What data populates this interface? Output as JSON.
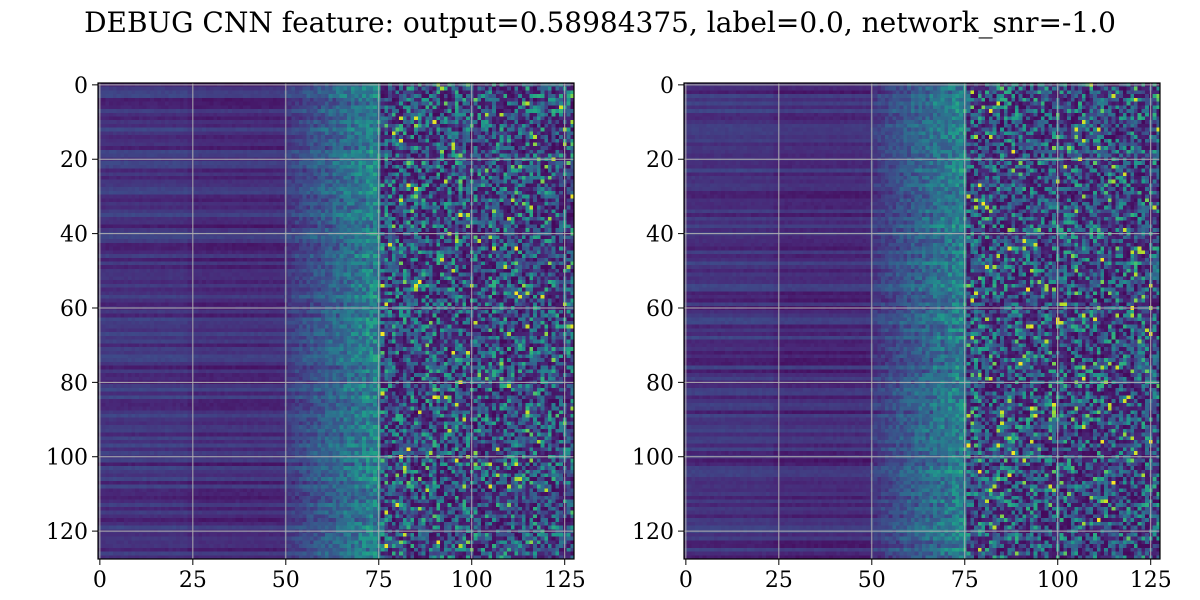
{
  "title": "DEBUG CNN feature: output=0.58984375, label=0.0, network_snr=-1.0",
  "colors": {
    "grid": "#b0b0b0",
    "axis": "#000000",
    "background": "#ffffff",
    "colormap": [
      "#440154",
      "#482878",
      "#3e4a89",
      "#31688e",
      "#26828e",
      "#1f9e89",
      "#35b779",
      "#6ece58",
      "#b5de2b",
      "#fde725"
    ]
  },
  "chart_data": [
    {
      "type": "heatmap",
      "colormap": "viridis",
      "grid": true,
      "shape": [
        128,
        128
      ],
      "xlim": [
        -0.5,
        127.5
      ],
      "ylim": [
        127.5,
        -0.5
      ],
      "y_inverted": true,
      "xticks": [
        0,
        25,
        50,
        75,
        100,
        125
      ],
      "yticks": [
        0,
        20,
        40,
        60,
        80,
        100,
        120
      ],
      "xtick_labels": [
        "0",
        "25",
        "50",
        "75",
        "100",
        "125"
      ],
      "ytick_labels": [
        "0",
        "20",
        "40",
        "60",
        "80",
        "100",
        "120"
      ],
      "pattern": "low, horizontally banded values in columns 0–50; values and noise increase from column ~50 to ~75; sparse noisy mix of low and high (up to max) values in columns 75–127",
      "value_range": [
        0,
        1
      ]
    },
    {
      "type": "heatmap",
      "colormap": "viridis",
      "grid": true,
      "shape": [
        128,
        128
      ],
      "xlim": [
        -0.5,
        127.5
      ],
      "ylim": [
        127.5,
        -0.5
      ],
      "y_inverted": true,
      "xticks": [
        0,
        25,
        50,
        75,
        100,
        125
      ],
      "yticks": [
        0,
        20,
        40,
        60,
        80,
        100,
        120
      ],
      "xtick_labels": [
        "0",
        "25",
        "50",
        "75",
        "100",
        "125"
      ],
      "ytick_labels": [
        "0",
        "20",
        "40",
        "60",
        "80",
        "100",
        "120"
      ],
      "pattern": "low, horizontally banded values in columns 0–50; values and noise increase from column ~50 to ~75; sparse noisy mix of low and high (up to max) values in columns 75–127",
      "value_range": [
        0,
        1
      ]
    }
  ]
}
